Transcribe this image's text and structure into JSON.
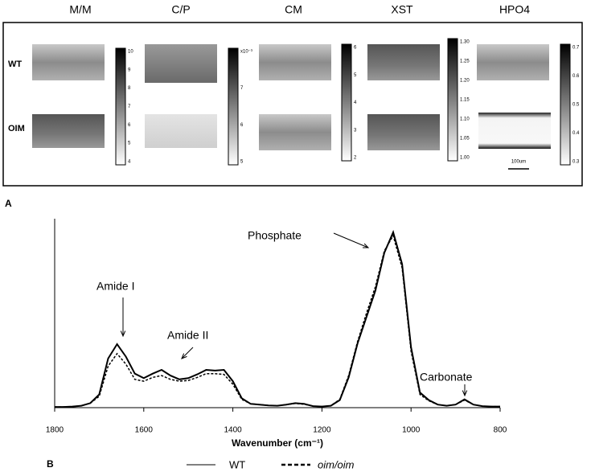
{
  "panel_a": {
    "letter": "A",
    "columns": [
      "M/M",
      "C/P",
      "CM",
      "XST",
      "HPO4"
    ],
    "rows": [
      "WT",
      "OIM"
    ],
    "colorbars": [
      [
        "10",
        "9",
        "8",
        "7",
        "6",
        "5",
        "4"
      ],
      [
        "x10⁻³",
        "7",
        "6",
        "5"
      ],
      [
        "6",
        "5",
        "4",
        "3",
        "2"
      ],
      [
        "1.30",
        "1.25",
        "1.20",
        "1.15",
        "1.10",
        "1.05",
        "1.00"
      ],
      [
        "0.7",
        "0.6",
        "0.5",
        "0.4",
        "0.3"
      ]
    ],
    "scale_bar": "100um"
  },
  "chart_data": {
    "type": "line",
    "panel_letter": "B",
    "x_label": "Wavenumber (cm⁻¹)",
    "x": [
      1800,
      1780,
      1760,
      1740,
      1720,
      1700,
      1680,
      1660,
      1640,
      1620,
      1600,
      1580,
      1560,
      1540,
      1520,
      1500,
      1480,
      1460,
      1440,
      1420,
      1400,
      1380,
      1360,
      1340,
      1320,
      1300,
      1280,
      1260,
      1240,
      1220,
      1200,
      1180,
      1160,
      1140,
      1120,
      1100,
      1080,
      1060,
      1040,
      1020,
      1000,
      980,
      960,
      940,
      920,
      900,
      880,
      860,
      840,
      820,
      800
    ],
    "xlim": [
      1800,
      800
    ],
    "xticks": [
      1800,
      1600,
      1400,
      1200,
      1000,
      800
    ],
    "ylim": [
      0,
      0.5
    ],
    "series": [
      {
        "name": "WT",
        "color": "#000000",
        "dash": false,
        "values": [
          0.002,
          0.002,
          0.003,
          0.005,
          0.012,
          0.035,
          0.13,
          0.168,
          0.135,
          0.09,
          0.078,
          0.09,
          0.1,
          0.085,
          0.075,
          0.078,
          0.088,
          0.1,
          0.098,
          0.1,
          0.07,
          0.025,
          0.01,
          0.008,
          0.006,
          0.005,
          0.008,
          0.012,
          0.01,
          0.004,
          0.003,
          0.005,
          0.02,
          0.08,
          0.17,
          0.24,
          0.31,
          0.41,
          0.464,
          0.38,
          0.16,
          0.04,
          0.02,
          0.008,
          0.005,
          0.008,
          0.022,
          0.008,
          0.004,
          0.003,
          0.003
        ]
      },
      {
        "name": "oim/oim",
        "color": "#000000",
        "dash": true,
        "values": [
          0.002,
          0.002,
          0.003,
          0.005,
          0.012,
          0.03,
          0.11,
          0.143,
          0.115,
          0.075,
          0.07,
          0.08,
          0.085,
          0.075,
          0.07,
          0.072,
          0.08,
          0.09,
          0.09,
          0.088,
          0.062,
          0.022,
          0.01,
          0.008,
          0.006,
          0.005,
          0.008,
          0.011,
          0.009,
          0.004,
          0.003,
          0.005,
          0.022,
          0.085,
          0.175,
          0.25,
          0.32,
          0.415,
          0.455,
          0.37,
          0.15,
          0.035,
          0.018,
          0.008,
          0.005,
          0.008,
          0.02,
          0.008,
          0.004,
          0.003,
          0.003
        ]
      }
    ],
    "annotations": [
      "Phosphate",
      "Amide I",
      "Amide II",
      "Carbonate"
    ]
  }
}
